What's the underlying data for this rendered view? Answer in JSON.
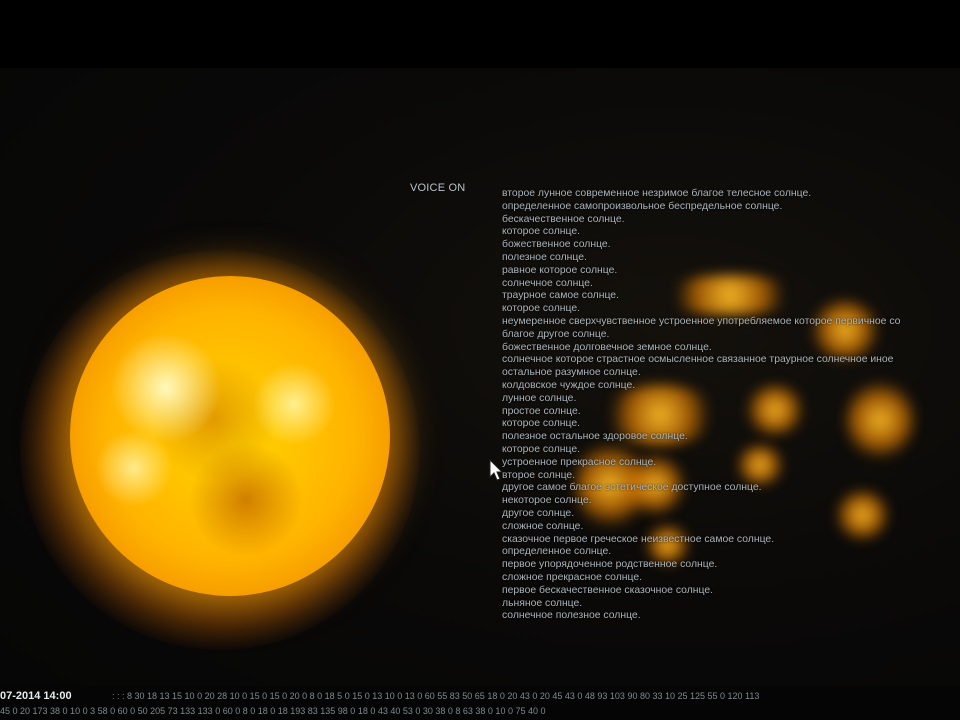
{
  "voice": {
    "label": "VOICE ON"
  },
  "poem": [
    "второе лунное современное незримое благое телесное солнце.",
    "определенное самопроизвольное беспредельное солнце.",
    "бескачественное солнце.",
    "которое солнце.",
    "божественное солнце.",
    "полезное солнце.",
    "равное которое солнце.",
    "солнечное солнце.",
    "траурное самое солнце.",
    "которое солнце.",
    "неумеренное сверхчувственное устроенное употребляемое которое первичное со",
    "благое другое солнце.",
    "божественное долговечное земное солнце.",
    "солнечное которое страстное осмысленное связанное траурное солнечное иное",
    "остальное разумное солнце.",
    "колдовское чуждое солнце.",
    "лунное солнце.",
    "простое солнце.",
    "которое солнце.",
    "полезное остальное здоровое солнце.",
    "которое солнце.",
    "устроенное прекрасное солнце.",
    "второе солнце.",
    "другое самое благое эстетическое доступное солнце.",
    "некоторое солнце.",
    "другое солнце.",
    "сложное солнце.",
    "сказочное первое греческое неизвестное самое солнце.",
    "определенное солнце.",
    "первое упорядоченное родственное солнце.",
    "сложное прекрасное солнце.",
    "первое бескачественное сказочное солнце.",
    "льняное солнце.",
    "солнечное полезное солнце."
  ],
  "footer": {
    "timestamp": "07-2014 14:00",
    "data_line_1": ": : : 8 30 18 13 15 10 0 20 28 10 0 15 0 15 0 20 0 8 0 18 5 0 15 0 13 10 0 13 0 60 55 83 50 65 18 0 20 43 0 20 45 43 0 48 93 103 90 80 33 10 25 125 55 0 120 113",
    "data_line_2": "45 0 20 173 38 0 10 0 3 58 0 60 0 50 205 73 133 133 0 60 0 8 0 18 0 18 193 83 135 98 0 18 0 43 40 53 0 30 38 0 8 63 38 0 10 0 75 40 0"
  },
  "colors": {
    "text": "#a9b3ba",
    "sun_core": "#ffd500",
    "sun_edge": "#f08a00"
  },
  "icons": {
    "cursor": "mouse-pointer-icon"
  }
}
